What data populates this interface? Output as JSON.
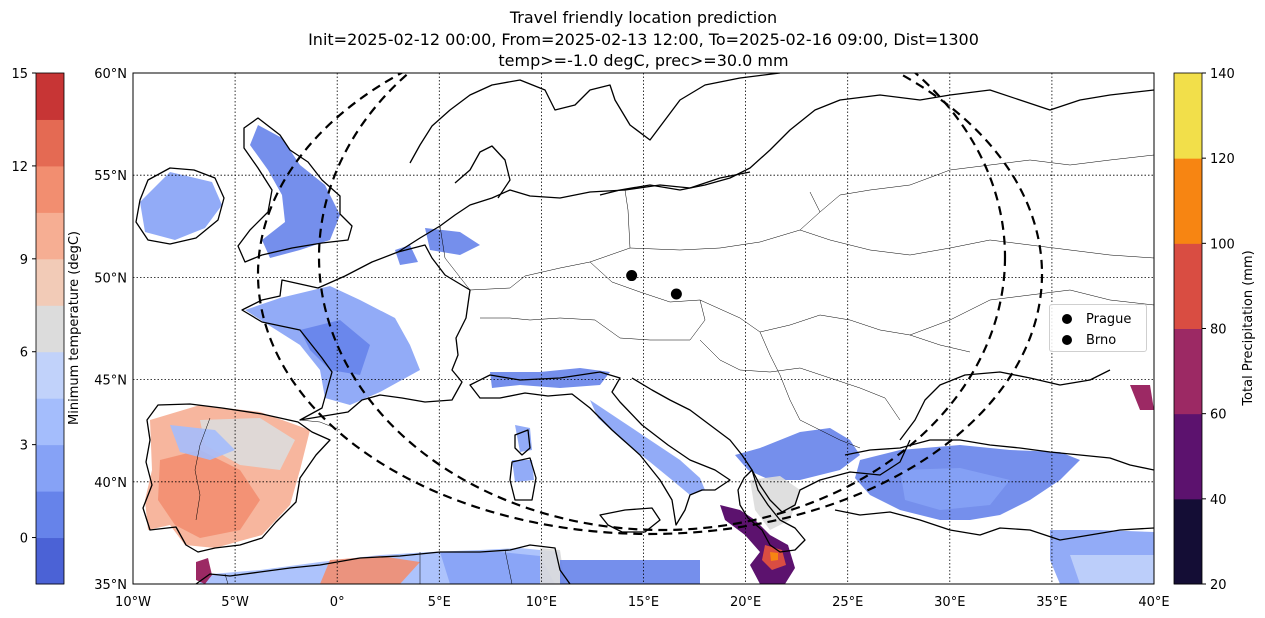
{
  "title": {
    "line1": "Travel friendly location prediction",
    "line2": "Init=2025-02-12 00:00, From=2025-02-13 12:00, To=2025-02-16 09:00, Dist=1300",
    "line3": "temp>=-1.0 degC, prec>=30.0 mm"
  },
  "map": {
    "lon_range": [
      -10,
      40
    ],
    "lat_range": [
      35,
      60
    ],
    "lon_ticks": [
      "10°W",
      "5°W",
      "0°",
      "5°E",
      "10°E",
      "15°E",
      "20°E",
      "25°E",
      "30°E",
      "35°E",
      "40°E"
    ],
    "lat_ticks": [
      "35°N",
      "40°N",
      "45°N",
      "50°N",
      "55°N",
      "60°N"
    ],
    "lon_values": [
      -10,
      -5,
      0,
      5,
      10,
      15,
      20,
      25,
      30,
      35,
      40
    ],
    "lat_values": [
      35,
      40,
      45,
      50,
      55,
      60
    ],
    "gridlines": true
  },
  "locations": [
    {
      "name": "Prague",
      "lon": 14.42,
      "lat": 50.09
    },
    {
      "name": "Brno",
      "lon": 16.61,
      "lat": 49.19
    }
  ],
  "temperature_colorbar": {
    "label": "Minimum temperature (degC)",
    "tick_labels": [
      "0",
      "3",
      "6",
      "9",
      "12",
      "15"
    ],
    "tick_values": [
      0,
      3,
      6,
      9,
      12,
      15
    ],
    "range": [
      -1.5,
      15
    ],
    "colors": [
      "#4b62d6",
      "#6683ea",
      "#86a2f6",
      "#a4bdfc",
      "#c1d2fa",
      "#dcdcdc",
      "#f2cbb7",
      "#f6ae93",
      "#f28e70",
      "#e46a53",
      "#c73535"
    ]
  },
  "precip_colorbar": {
    "label": "Total Precipitation (mm)",
    "tick_labels": [
      "20",
      "40",
      "60",
      "80",
      "100",
      "120",
      "140"
    ],
    "tick_values": [
      20,
      40,
      60,
      80,
      100,
      120,
      140
    ],
    "range": [
      20,
      140
    ],
    "colors": [
      "#140d35",
      "#5c126e",
      "#9c2964",
      "#d94d42",
      "#f78512",
      "#f2df4a"
    ]
  },
  "legend": {
    "items": [
      "Prague",
      "Brno"
    ]
  }
}
